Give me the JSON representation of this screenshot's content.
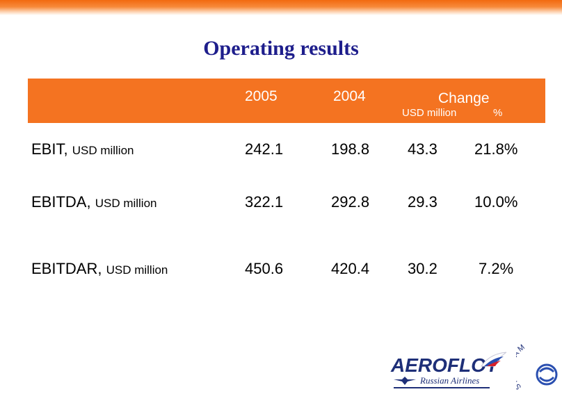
{
  "slide": {
    "title": "Operating results"
  },
  "header": {
    "col_2005": "2005",
    "col_2004": "2004",
    "change": "Change",
    "change_usd": "USD million",
    "change_pct": "%"
  },
  "rows": [
    {
      "label": "EBIT,",
      "unit": "USD million",
      "v2005": "242.1",
      "v2004": "198.8",
      "change_usd": "43.3",
      "change_pct": "21.8%"
    },
    {
      "label": "EBITDA,",
      "unit": "USD million",
      "v2005": "322.1",
      "v2004": "292.8",
      "change_usd": "29.3",
      "change_pct": "10.0%"
    },
    {
      "label": "EBITDAR,",
      "unit": "USD million",
      "v2005": "450.6",
      "v2004": "420.4",
      "change_usd": "30.2",
      "change_pct": "7.2%"
    }
  ],
  "logo": {
    "brand": "AEROFLOT",
    "tagline": "Russian Airlines",
    "alliance": "SKYTEAM"
  },
  "colors": {
    "accent_orange": "#f47321",
    "title_blue": "#1e1e8c",
    "logo_blue": "#1e2f78"
  }
}
